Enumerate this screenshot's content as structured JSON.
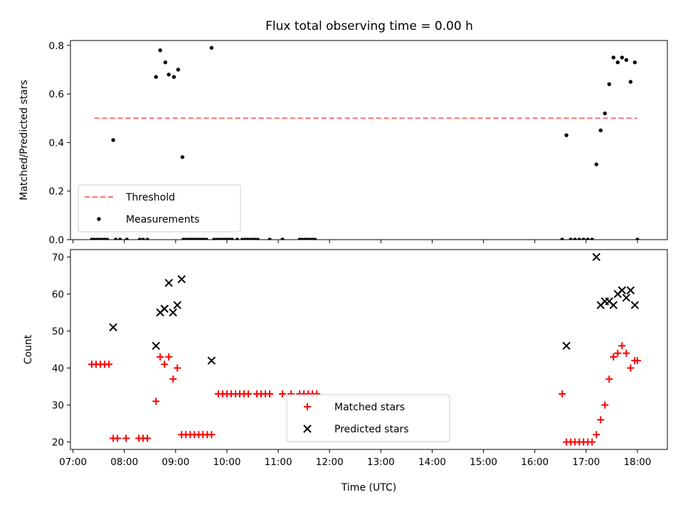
{
  "title": "Flux total observing time = 0.00 h",
  "chart_data": [
    {
      "type": "scatter",
      "ylabel": "Matched/Predicted stars",
      "xlabel": "",
      "ylim": [
        0,
        0.82
      ],
      "yticks": [
        0.0,
        0.2,
        0.4,
        0.6,
        0.8
      ],
      "ytick_labels": [
        "0.0",
        "0.2",
        "0.4",
        "0.6",
        "0.8"
      ],
      "xlim": [
        "06:57",
        "18:35"
      ],
      "x_is_time": true,
      "legend_position": "lower-left",
      "series": [
        {
          "name": "Threshold",
          "kind": "line",
          "style": "dashed",
          "color": "#ff7070",
          "x": [
            "07:25",
            "18:00"
          ],
          "y": [
            0.5,
            0.5
          ]
        },
        {
          "name": "Measurements",
          "kind": "scatter",
          "marker": "dot",
          "color": "#000000",
          "x": [
            "07:22",
            "07:25",
            "07:28",
            "07:31",
            "07:34",
            "07:37",
            "07:40",
            "07:47",
            "07:50",
            "07:55",
            "08:03",
            "08:18",
            "08:22",
            "08:27",
            "08:37",
            "08:42",
            "08:48",
            "08:52",
            "08:58",
            "09:03",
            "09:08",
            "09:09",
            "09:12",
            "09:15",
            "09:18",
            "09:21",
            "09:24",
            "09:27",
            "09:30",
            "09:33",
            "09:36",
            "09:42",
            "09:45",
            "09:48",
            "09:51",
            "09:54",
            "09:57",
            "10:00",
            "10:03",
            "10:06",
            "10:12",
            "10:18",
            "10:21",
            "10:24",
            "10:27",
            "10:30",
            "10:33",
            "10:36",
            "10:50",
            "11:05",
            "11:05",
            "11:25",
            "11:28",
            "11:31",
            "11:34",
            "11:37",
            "11:40",
            "11:43",
            "16:32",
            "16:37",
            "16:42",
            "16:47",
            "16:52",
            "16:57",
            "17:02",
            "17:07",
            "17:12",
            "17:17",
            "17:22",
            "17:27",
            "17:32",
            "17:37",
            "17:42",
            "17:47",
            "17:52",
            "17:57",
            "18:00"
          ],
          "y": [
            0,
            0,
            0,
            0,
            0,
            0,
            0,
            0.41,
            0,
            0,
            0,
            0,
            0,
            0,
            0.67,
            0.78,
            0.73,
            0.68,
            0.67,
            0.7,
            0.34,
            0,
            0,
            0,
            0,
            0,
            0,
            0,
            0,
            0,
            0,
            0.79,
            0,
            0,
            0,
            0,
            0,
            0,
            0,
            0,
            0,
            0,
            0,
            0,
            0,
            0,
            0,
            0,
            0,
            0,
            0,
            0,
            0,
            0,
            0,
            0,
            0,
            0,
            0,
            0.43,
            0,
            0,
            0,
            0,
            0,
            0,
            0.31,
            0.45,
            0.52,
            0.64,
            0.75,
            0.73,
            0.75,
            0.74,
            0.65,
            0.73,
            0
          ]
        }
      ]
    },
    {
      "type": "scatter",
      "ylabel": "Count",
      "xlabel": "Time (UTC)",
      "ylim": [
        18,
        72
      ],
      "yticks": [
        20,
        30,
        40,
        50,
        60,
        70
      ],
      "ytick_labels": [
        "20",
        "30",
        "40",
        "50",
        "60",
        "70"
      ],
      "xlim": [
        "06:57",
        "18:35"
      ],
      "x_is_time": true,
      "xticks": [
        "07:00",
        "08:00",
        "09:00",
        "10:00",
        "11:00",
        "12:00",
        "13:00",
        "14:00",
        "15:00",
        "16:00",
        "17:00",
        "18:00"
      ],
      "xtick_labels": [
        "07:00",
        "08:00",
        "09:00",
        "10:00",
        "11:00",
        "12:00",
        "13:00",
        "14:00",
        "15:00",
        "16:00",
        "17:00",
        "18:00"
      ],
      "legend_position": "lower-center",
      "series": [
        {
          "name": "Matched stars",
          "kind": "scatter",
          "marker": "plus",
          "color": "#ff0000",
          "x": [
            "07:22",
            "07:27",
            "07:32",
            "07:37",
            "07:42",
            "07:47",
            "07:52",
            "08:02",
            "08:17",
            "08:22",
            "08:27",
            "08:37",
            "08:42",
            "08:47",
            "08:52",
            "08:57",
            "09:02",
            "09:07",
            "09:12",
            "09:17",
            "09:22",
            "09:27",
            "09:32",
            "09:37",
            "09:42",
            "09:50",
            "09:55",
            "10:00",
            "10:05",
            "10:10",
            "10:15",
            "10:20",
            "10:25",
            "10:35",
            "10:40",
            "10:45",
            "10:50",
            "11:05",
            "11:15",
            "11:25",
            "11:30",
            "11:35",
            "11:40",
            "11:45",
            "16:32",
            "16:37",
            "16:42",
            "16:47",
            "16:52",
            "16:57",
            "17:02",
            "17:07",
            "17:12",
            "17:17",
            "17:22",
            "17:27",
            "17:32",
            "17:37",
            "17:42",
            "17:47",
            "17:52",
            "17:57",
            "18:00"
          ],
          "y": [
            41,
            41,
            41,
            41,
            41,
            21,
            21,
            21,
            21,
            21,
            21,
            31,
            43,
            41,
            43,
            37,
            40,
            22,
            22,
            22,
            22,
            22,
            22,
            22,
            22,
            33,
            33,
            33,
            33,
            33,
            33,
            33,
            33,
            33,
            33,
            33,
            33,
            33,
            33,
            33,
            33,
            33,
            33,
            33,
            33,
            20,
            20,
            20,
            20,
            20,
            20,
            20,
            22,
            26,
            30,
            37,
            43,
            44,
            46,
            44,
            40,
            42,
            42
          ]
        },
        {
          "name": "Predicted stars",
          "kind": "scatter",
          "marker": "x",
          "color": "#000000",
          "x": [
            "07:47",
            "08:37",
            "08:42",
            "08:47",
            "08:52",
            "08:57",
            "09:02",
            "09:07",
            "09:42",
            "16:37",
            "17:12",
            "17:17",
            "17:22",
            "17:27",
            "17:32",
            "17:37",
            "17:42",
            "17:47",
            "17:52",
            "17:57"
          ],
          "y": [
            51,
            46,
            55,
            56,
            63,
            55,
            57,
            64,
            42,
            46,
            70,
            57,
            58,
            58,
            57,
            60,
            61,
            59,
            61,
            57
          ]
        }
      ]
    }
  ]
}
